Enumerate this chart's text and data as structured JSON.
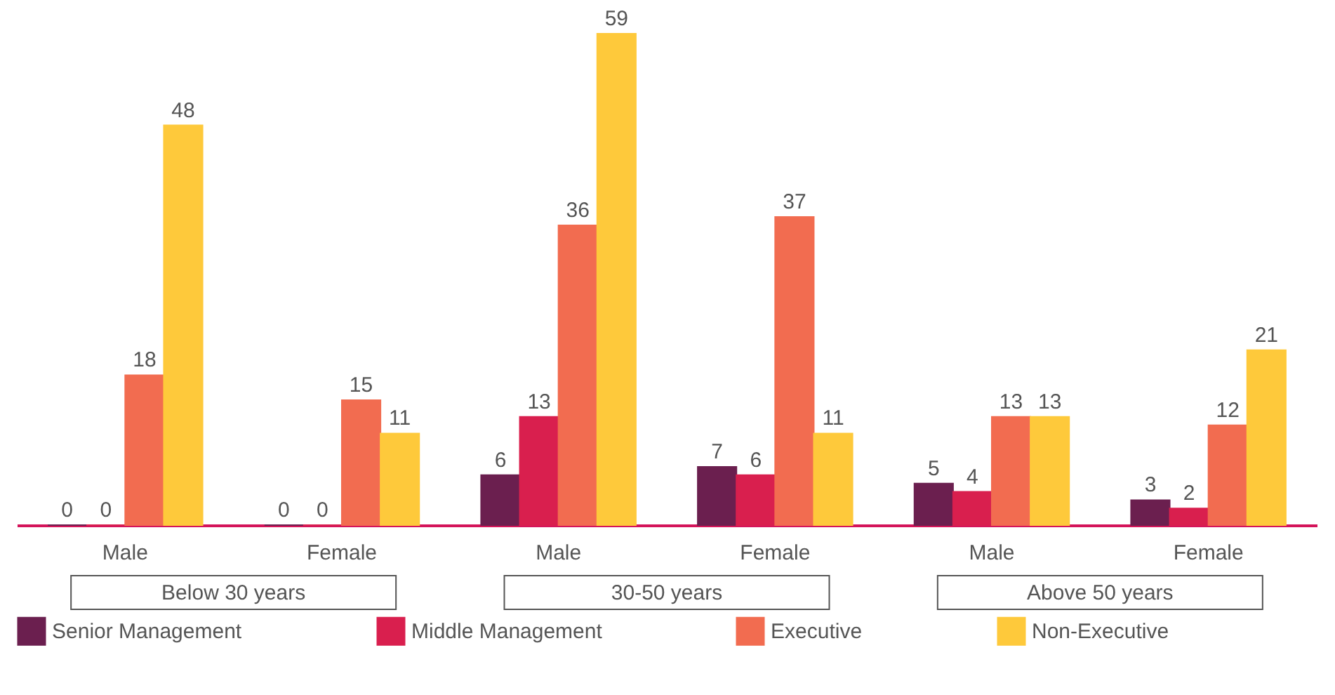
{
  "chart_data": {
    "type": "bar",
    "categories": [
      "Male",
      "Female",
      "Male",
      "Female",
      "Male",
      "Female"
    ],
    "series": [
      {
        "name": "Senior Management",
        "color": "#6b1f4f",
        "values": [
          0,
          0,
          6,
          7,
          5,
          3
        ]
      },
      {
        "name": "Middle Management",
        "color": "#d91f4e",
        "values": [
          0,
          0,
          13,
          6,
          4,
          2
        ]
      },
      {
        "name": "Executive",
        "color": "#f26c50",
        "values": [
          18,
          15,
          36,
          37,
          13,
          12
        ]
      },
      {
        "name": "Non-Executive",
        "color": "#fec93b",
        "values": [
          48,
          11,
          59,
          11,
          13,
          21
        ]
      }
    ],
    "annotations": [
      "Below 30 years",
      "30-50 years",
      "Above 50 years"
    ],
    "data_labels": true,
    "legend": "bottom",
    "grid": false
  }
}
